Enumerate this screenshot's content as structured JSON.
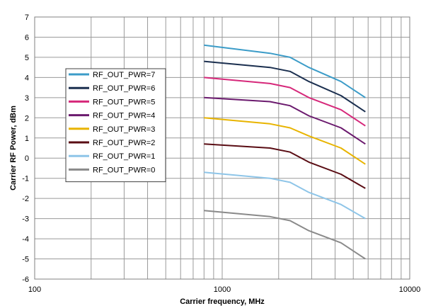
{
  "chart_data": {
    "type": "line",
    "xscale": "log",
    "xlabel": "Carrier frequency, MHz",
    "ylabel": "Carrier RF Power, dBm",
    "xlim": [
      100,
      10000
    ],
    "ylim": [
      -6,
      7
    ],
    "xticks": [
      "100",
      "1000",
      "10000"
    ],
    "yticks": [
      "-6",
      "-5",
      "-4",
      "-3",
      "-2",
      "-1",
      "0",
      "1",
      "2",
      "3",
      "4",
      "5",
      "6",
      "7"
    ],
    "grid": true,
    "legend_position": "left",
    "x": [
      800,
      1800,
      2300,
      2900,
      4300,
      5800
    ],
    "series": [
      {
        "name": "RF_OUT_PWR=7",
        "color": "#3c9cc8",
        "values": [
          5.6,
          5.2,
          5.0,
          4.5,
          3.8,
          3.0
        ]
      },
      {
        "name": "RF_OUT_PWR=6",
        "color": "#1b2f4f",
        "values": [
          4.8,
          4.5,
          4.3,
          3.8,
          3.1,
          2.3
        ]
      },
      {
        "name": "RF_OUT_PWR=5",
        "color": "#d6287a",
        "values": [
          4.0,
          3.7,
          3.5,
          3.0,
          2.4,
          1.6
        ]
      },
      {
        "name": "RF_OUT_PWR=4",
        "color": "#6b1a6e",
        "values": [
          3.0,
          2.8,
          2.6,
          2.1,
          1.5,
          0.7
        ]
      },
      {
        "name": "RF_OUT_PWR=3",
        "color": "#e8b400",
        "values": [
          2.0,
          1.7,
          1.5,
          1.1,
          0.5,
          -0.3
        ]
      },
      {
        "name": "RF_OUT_PWR=2",
        "color": "#5a0d14",
        "values": [
          0.7,
          0.5,
          0.3,
          -0.2,
          -0.8,
          -1.5
        ]
      },
      {
        "name": "RF_OUT_PWR=1",
        "color": "#8ec5e8",
        "values": [
          -0.7,
          -1.0,
          -1.2,
          -1.7,
          -2.3,
          -3.0
        ]
      },
      {
        "name": "RF_OUT_PWR=0",
        "color": "#8a8a8a",
        "values": [
          -2.6,
          -2.9,
          -3.1,
          -3.6,
          -4.2,
          -5.0
        ]
      }
    ]
  }
}
